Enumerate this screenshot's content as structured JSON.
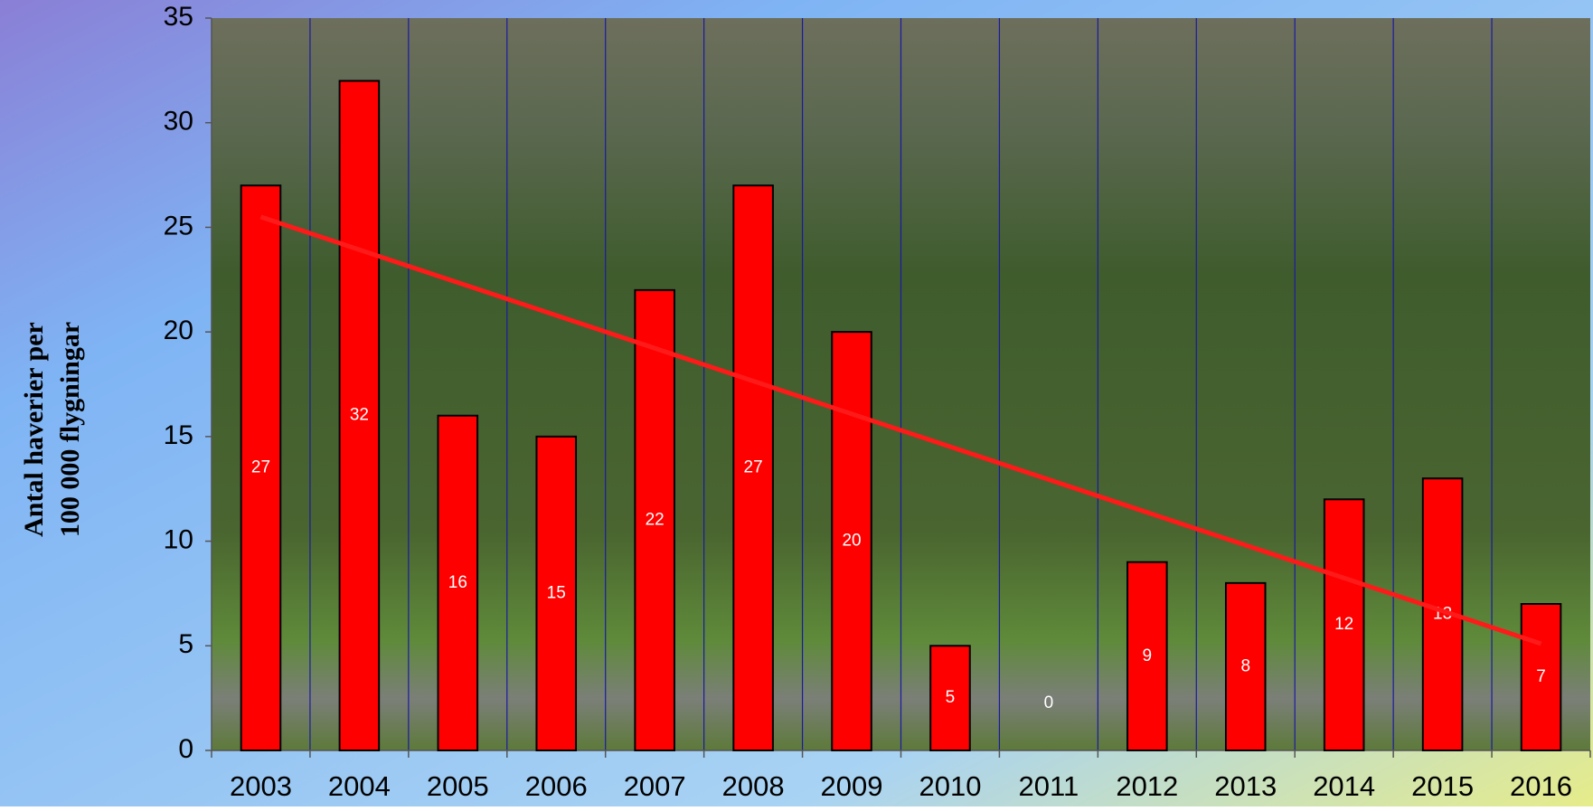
{
  "chart_data": {
    "type": "bar",
    "ylabel": [
      "Antal haverier per",
      "100 000 flygningar"
    ],
    "categories": [
      "2003",
      "2004",
      "2005",
      "2006",
      "2007",
      "2008",
      "2009",
      "2010",
      "2011",
      "2012",
      "2013",
      "2014",
      "2015",
      "2016"
    ],
    "values": [
      27,
      32,
      16,
      15,
      22,
      27,
      20,
      5,
      0,
      9,
      8,
      12,
      13,
      7
    ],
    "color": "#ff0000",
    "trendline": {
      "color": "#ff1a1a",
      "values": [
        25.5,
        5.1
      ]
    },
    "ylim": [
      0,
      35
    ],
    "yticks": [
      0,
      5,
      10,
      15,
      20,
      25,
      30,
      35
    ],
    "category_separators": true
  }
}
